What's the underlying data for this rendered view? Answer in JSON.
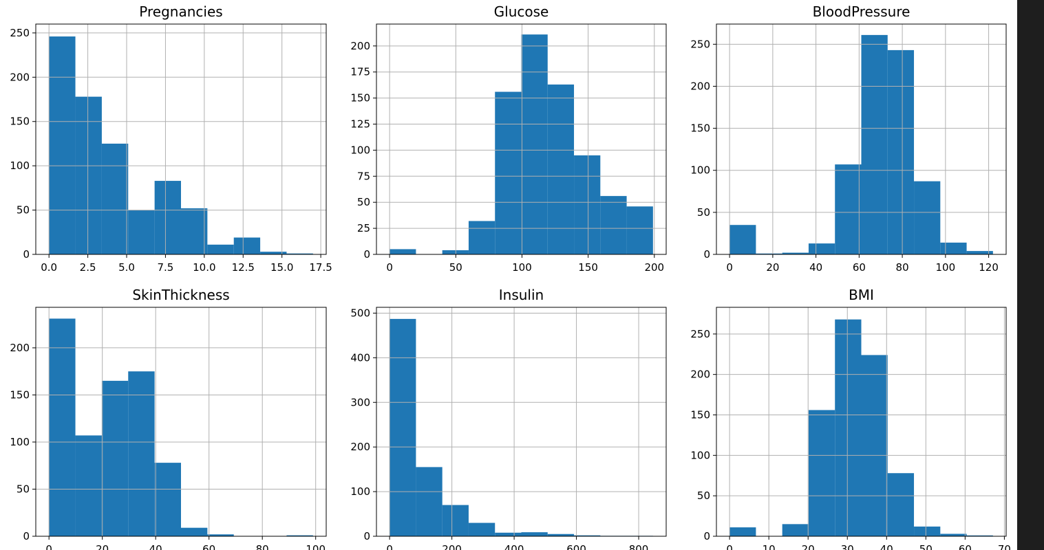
{
  "chart_data": [
    {
      "type": "bar",
      "title": "Pregnancies",
      "xlim": [
        -0.85,
        17.85
      ],
      "ylim": [
        0,
        260
      ],
      "xticks": [
        0,
        2.5,
        5,
        7.5,
        10,
        12.5,
        15,
        17.5
      ],
      "xticklabels": [
        "0.0",
        "2.5",
        "5.0",
        "7.5",
        "10.0",
        "12.5",
        "15.0",
        "17.5"
      ],
      "yticks": [
        0,
        50,
        100,
        150,
        200,
        250
      ],
      "yticklabels": [
        "0",
        "50",
        "100",
        "150",
        "200",
        "250"
      ],
      "bin_edges": [
        0,
        1.7,
        3.4,
        5.1,
        6.8,
        8.5,
        10.2,
        11.9,
        13.6,
        15.3,
        17
      ],
      "values": [
        246,
        178,
        125,
        50,
        83,
        52,
        11,
        19,
        3,
        1
      ],
      "grid": true
    },
    {
      "type": "bar",
      "title": "Glucose",
      "xlim": [
        -9.95,
        208.95
      ],
      "ylim": [
        0,
        221
      ],
      "xticks": [
        0,
        50,
        100,
        150,
        200
      ],
      "xticklabels": [
        "0",
        "50",
        "100",
        "150",
        "200"
      ],
      "yticks": [
        0,
        25,
        50,
        75,
        100,
        125,
        150,
        175,
        200
      ],
      "yticklabels": [
        "0",
        "25",
        "50",
        "75",
        "100",
        "125",
        "150",
        "175",
        "200"
      ],
      "bin_edges": [
        0,
        19.9,
        39.8,
        59.7,
        79.6,
        99.5,
        119.4,
        139.3,
        159.2,
        179.1,
        199
      ],
      "values": [
        5,
        0,
        4,
        32,
        156,
        211,
        163,
        95,
        56,
        46
      ],
      "grid": true
    },
    {
      "type": "bar",
      "title": "BloodPressure",
      "xlim": [
        -6.1,
        128.1
      ],
      "ylim": [
        0,
        274
      ],
      "xticks": [
        0,
        20,
        40,
        60,
        80,
        100,
        120
      ],
      "xticklabels": [
        "0",
        "20",
        "40",
        "60",
        "80",
        "100",
        "120"
      ],
      "yticks": [
        0,
        50,
        100,
        150,
        200,
        250
      ],
      "yticklabels": [
        "0",
        "50",
        "100",
        "150",
        "200",
        "250"
      ],
      "bin_edges": [
        0,
        12.2,
        24.4,
        36.6,
        48.8,
        61,
        73.2,
        85.4,
        97.6,
        109.8,
        122
      ],
      "values": [
        35,
        1,
        2,
        13,
        107,
        261,
        243,
        87,
        14,
        4
      ],
      "grid": true
    },
    {
      "type": "bar",
      "title": "SkinThickness",
      "xlim": [
        -4.95,
        103.95
      ],
      "ylim": [
        0,
        243
      ],
      "xticks": [
        0,
        20,
        40,
        60,
        80,
        100
      ],
      "xticklabels": [
        "0",
        "20",
        "40",
        "60",
        "80",
        "100"
      ],
      "yticks": [
        0,
        50,
        100,
        150,
        200
      ],
      "yticklabels": [
        "0",
        "50",
        "100",
        "150",
        "200"
      ],
      "bin_edges": [
        0,
        9.9,
        19.8,
        29.7,
        39.6,
        49.5,
        59.4,
        69.3,
        79.2,
        89.1,
        99
      ],
      "values": [
        231,
        107,
        165,
        175,
        78,
        9,
        2,
        0,
        0,
        1
      ],
      "grid": true
    },
    {
      "type": "bar",
      "title": "Insulin",
      "xlim": [
        -42.3,
        888.3
      ],
      "ylim": [
        0,
        513
      ],
      "xticks": [
        0,
        200,
        400,
        600,
        800
      ],
      "xticklabels": [
        "0",
        "200",
        "400",
        "600",
        "800"
      ],
      "yticks": [
        0,
        100,
        200,
        300,
        400,
        500
      ],
      "yticklabels": [
        "0",
        "100",
        "200",
        "300",
        "400",
        "500"
      ],
      "bin_edges": [
        0,
        84.6,
        169.2,
        253.8,
        338.4,
        423,
        507.6,
        592.2,
        676.8,
        761.4,
        846
      ],
      "values": [
        487,
        155,
        70,
        30,
        8,
        9,
        5,
        2,
        1,
        1
      ],
      "grid": true
    },
    {
      "type": "bar",
      "title": "BMI",
      "xlim": [
        -3.355,
        70.455
      ],
      "ylim": [
        0,
        283
      ],
      "xticks": [
        0,
        10,
        20,
        30,
        40,
        50,
        60,
        70
      ],
      "xticklabels": [
        "0",
        "10",
        "20",
        "30",
        "40",
        "50",
        "60",
        "70"
      ],
      "yticks": [
        0,
        50,
        100,
        150,
        200,
        250
      ],
      "yticklabels": [
        "0",
        "50",
        "100",
        "150",
        "200",
        "250"
      ],
      "bin_edges": [
        0,
        6.71,
        13.42,
        20.13,
        26.84,
        33.55,
        40.26,
        46.97,
        53.68,
        60.39,
        67.1
      ],
      "values": [
        11,
        0,
        15,
        156,
        268,
        224,
        78,
        12,
        3,
        1
      ],
      "grid": true
    }
  ],
  "colors": {
    "bar": "#1f77b4",
    "grid": "#b0b0b0",
    "axes": "#000000",
    "background": "#ffffff"
  }
}
